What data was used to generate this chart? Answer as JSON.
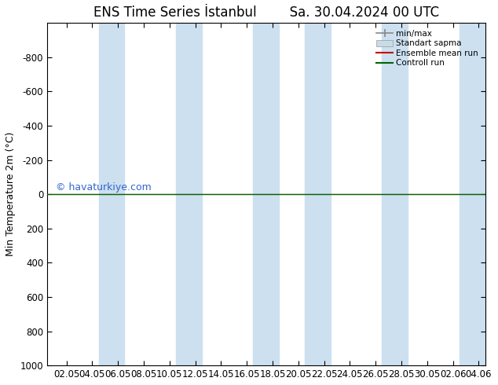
{
  "title": "ENS Time Series İstanbul        Sa. 30.04.2024 00 UTC",
  "ylabel": "Min Temperature 2m (°C)",
  "watermark": "© havaturkiye.com",
  "ylim_top": -1000,
  "ylim_bottom": 1000,
  "yticks": [
    -800,
    -600,
    -400,
    -200,
    0,
    200,
    400,
    600,
    800,
    1000
  ],
  "xtick_labels": [
    "02.05",
    "04.05",
    "06.05",
    "08.05",
    "10.05",
    "12.05",
    "14.05",
    "16.05",
    "18.05",
    "20.05",
    "22.05",
    "24.05",
    "26.05",
    "28.05",
    "30.05",
    "02.06",
    "04.06"
  ],
  "shaded_bands": [
    [
      3.5,
      5.5
    ],
    [
      9.5,
      11.5
    ],
    [
      15.5,
      17.5
    ],
    [
      19.5,
      21.5
    ],
    [
      25.5,
      27.5
    ],
    [
      31.5,
      33.5
    ]
  ],
  "x_min": -0.5,
  "x_max": 33.5,
  "background_color": "#ffffff",
  "plot_bg_color": "#ffffff",
  "band_color": "#cce0f0",
  "control_run_color": "#006600",
  "ensemble_mean_color": "#cc0000",
  "legend_labels": [
    "min/max",
    "Standart sapma",
    "Ensemble mean run",
    "Controll run"
  ],
  "title_fontsize": 12,
  "ylabel_fontsize": 9,
  "tick_fontsize": 8.5,
  "watermark_color": "#3366cc",
  "watermark_fontsize": 9,
  "xtick_positions": [
    1,
    3,
    5,
    7,
    9,
    11,
    13,
    15,
    17,
    19,
    21,
    23,
    25,
    27,
    29,
    31,
    33
  ]
}
